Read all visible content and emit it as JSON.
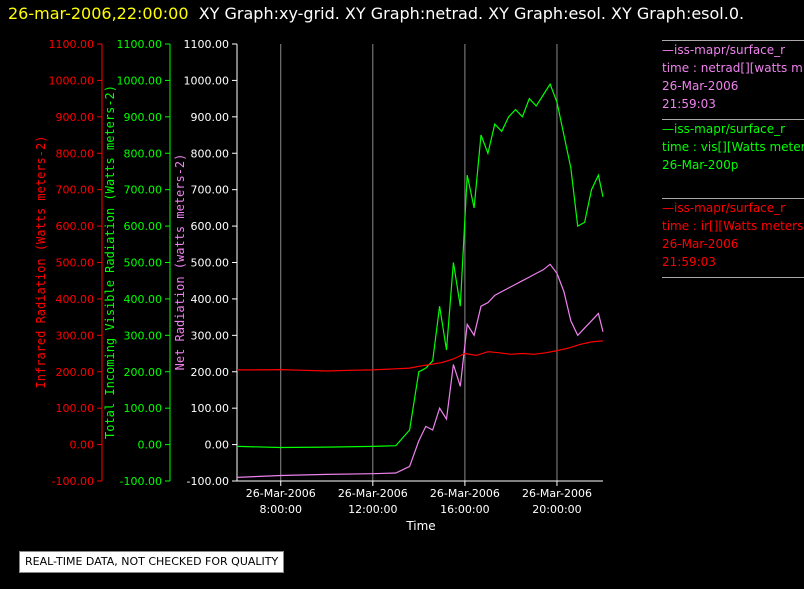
{
  "header": {
    "timestamp": "26-mar-2006,22:00:00",
    "graphs": "XY Graph:xy-grid.  XY Graph:netrad.  XY Graph:esol.  XY Graph:esol.0."
  },
  "legend": [
    {
      "line1": "—iss-mapr/surface_r",
      "line2": "time : netrad[][watts m",
      "line3": "26-Mar-2006",
      "line4": "21:59:03",
      "color": "#ee82ee"
    },
    {
      "line1": "—iss-mapr/surface_r",
      "line2": "time : vis[][Watts meter",
      "line3": "26-Mar-200p",
      "line4": "",
      "color": "#00ff00"
    },
    {
      "line1": "—iss-mapr/surface_r",
      "line2": "time : ir[][Watts meters",
      "line3": "26-Mar-2006",
      "line4": "21:59:03",
      "color": "#ff0000"
    }
  ],
  "notice": "REAL-TIME DATA, NOT CHECKED FOR QUALITY",
  "chart_data": {
    "type": "line",
    "xlabel": "Time",
    "x_ticks": [
      {
        "hour": 8,
        "date": "26-Mar-2006",
        "time": "8:00:00"
      },
      {
        "hour": 12,
        "date": "26-Mar-2006",
        "time": "12:00:00"
      },
      {
        "hour": 16,
        "date": "26-Mar-2006",
        "time": "16:00:00"
      },
      {
        "hour": 20,
        "date": "26-Mar-2006",
        "time": "20:00:00"
      }
    ],
    "xlim": [
      6.1,
      22.0
    ],
    "axes": [
      {
        "label": "Infrared Radiation (Watts meters-2)",
        "color": "#ff0000",
        "ylim": [
          -100,
          1100
        ],
        "ticks": [
          "1100.00",
          "1000.00",
          "900.00",
          "800.00",
          "700.00",
          "600.00",
          "500.00",
          "400.00",
          "300.00",
          "200.00",
          "100.00",
          "0.00",
          "-100.00"
        ]
      },
      {
        "label": "Total Incoming Visible Radiation (Watts meters-2)",
        "color": "#00ff00",
        "ylim": [
          -100,
          1100
        ],
        "ticks": [
          "1100.00",
          "1000.00",
          "900.00",
          "800.00",
          "700.00",
          "600.00",
          "500.00",
          "400.00",
          "300.00",
          "200.00",
          "100.00",
          "0.00",
          "-100.00"
        ]
      },
      {
        "label": "Net Radiation (watts meters-2)",
        "color": "#ee82ee",
        "ylim": [
          -100,
          1100
        ],
        "ticks": [
          "1100.00",
          "1000.00",
          "900.00",
          "800.00",
          "700.00",
          "600.00",
          "500.00",
          "400.00",
          "300.00",
          "200.00",
          "100.00",
          "0.00",
          "-100.00"
        ]
      }
    ],
    "series": [
      {
        "color": "#00ff00",
        "x": [
          6.1,
          8,
          10,
          12,
          13,
          13.6,
          14,
          14.3,
          14.6,
          14.9,
          15.2,
          15.5,
          15.8,
          16.1,
          16.4,
          16.7,
          17,
          17.3,
          17.6,
          17.9,
          18.2,
          18.5,
          18.8,
          19.1,
          19.4,
          19.7,
          20,
          20.3,
          20.6,
          20.9,
          21.2,
          21.5,
          21.8,
          22
        ],
        "values": [
          -5,
          -8,
          -7,
          -5,
          -3,
          40,
          200,
          210,
          230,
          380,
          260,
          500,
          380,
          740,
          650,
          850,
          800,
          880,
          860,
          900,
          920,
          900,
          950,
          930,
          960,
          990,
          940,
          850,
          760,
          600,
          610,
          700,
          740,
          680
        ]
      },
      {
        "color": "#ee82ee",
        "x": [
          6.1,
          8,
          10,
          12,
          13,
          13.6,
          14,
          14.3,
          14.6,
          14.9,
          15.2,
          15.5,
          15.8,
          16.1,
          16.4,
          16.7,
          17,
          17.3,
          17.6,
          17.9,
          18.2,
          18.5,
          18.8,
          19.1,
          19.4,
          19.7,
          20,
          20.3,
          20.6,
          20.9,
          21.2,
          21.5,
          21.8,
          22
        ],
        "values": [
          -90,
          -85,
          -82,
          -80,
          -78,
          -60,
          10,
          50,
          40,
          100,
          70,
          220,
          160,
          330,
          300,
          380,
          390,
          410,
          420,
          430,
          440,
          450,
          460,
          470,
          480,
          495,
          470,
          420,
          340,
          300,
          320,
          340,
          360,
          310
        ]
      },
      {
        "color": "#ff0000",
        "x": [
          6.1,
          7,
          8,
          9,
          10,
          11,
          12,
          13,
          13.6,
          14,
          14.5,
          15,
          15.5,
          16,
          16.5,
          17,
          17.5,
          18,
          18.5,
          19,
          19.5,
          20,
          20.5,
          21,
          21.5,
          22
        ],
        "values": [
          205,
          205,
          206,
          204,
          202,
          204,
          205,
          208,
          210,
          215,
          220,
          225,
          235,
          250,
          245,
          255,
          252,
          248,
          250,
          248,
          252,
          258,
          265,
          275,
          282,
          285
        ]
      }
    ]
  }
}
